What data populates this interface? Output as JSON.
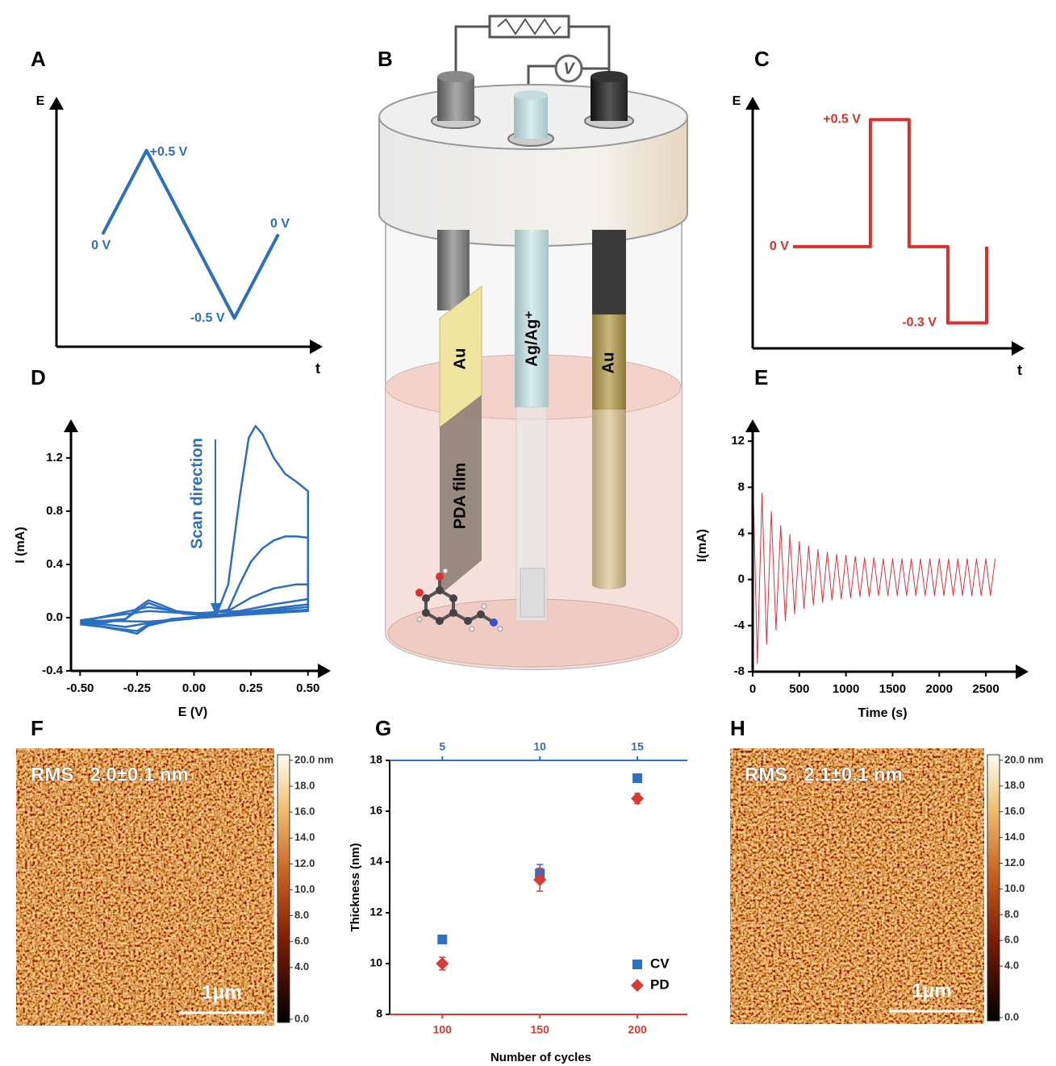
{
  "panel_labels": [
    "A",
    "B",
    "C",
    "D",
    "E",
    "F",
    "G",
    "H"
  ],
  "diagram": {
    "electrode_left": "Au",
    "reference": "Ag/Ag⁺",
    "electrode_right": "Au",
    "film": "PDA film",
    "meter": "V"
  },
  "chart_data": [
    {
      "type": "line",
      "xlabel": "t",
      "ylabel": "E",
      "color": "#2a6fc0",
      "x": [
        0,
        1,
        3,
        4
      ],
      "values": [
        0,
        0.5,
        -0.5,
        0
      ],
      "value_labels": [
        "0 V",
        "+0.5 V",
        "-0.5 V",
        "0 V"
      ],
      "xlim": [
        -1.05,
        5.01
      ],
      "ylim": [
        -0.67,
        0.82
      ]
    },
    {
      "type": "line",
      "xlabel": "t",
      "ylabel": "E",
      "color": "#d9302b",
      "x": [
        0,
        2,
        2,
        3,
        3,
        4,
        4,
        5,
        5
      ],
      "values": [
        0,
        0,
        0.5,
        0.5,
        0,
        0,
        -0.3,
        -0.3,
        0
      ],
      "value_labels": [
        "0 V",
        null,
        "+0.5 V",
        null,
        null,
        null,
        "-0.3 V",
        null,
        null
      ],
      "xlim": [
        -1.04,
        5.98
      ],
      "ylim": [
        -0.4,
        0.59
      ]
    },
    {
      "type": "line",
      "xlabel": "E (V)",
      "ylabel": "I (mA)",
      "annotation": "Scan direction",
      "xlim": [
        -0.54,
        0.6
      ],
      "ylim": [
        -0.4,
        1.49
      ],
      "xticks": [
        {
          "value": -0.5,
          "label": "-0.50"
        },
        {
          "value": -0.25,
          "label": "-0.25"
        },
        {
          "value": 0,
          "label": "0.00"
        },
        {
          "value": 0.25,
          "label": "0.25"
        },
        {
          "value": 0.5,
          "label": "0.50"
        }
      ],
      "yticks": [
        -0.4,
        {
          "value": 0,
          "label": "0.0"
        },
        0.4,
        0.8,
        1.2
      ],
      "series": [
        {
          "color": "#2a6fc0",
          "x": [
            -0.5,
            -0.4,
            -0.3,
            -0.25,
            -0.2,
            -0.15,
            -0.05,
            0.05,
            0.1,
            0.15,
            0.2,
            0.24,
            0.27,
            0.3,
            0.35,
            0.4,
            0.45,
            0.5,
            0.5,
            0.4,
            0.3,
            0.2,
            0.1,
            0,
            -0.1,
            -0.2,
            -0.25,
            -0.3,
            -0.4,
            -0.5
          ],
          "values": [
            -0.05,
            -0.04,
            -0.01,
            0.07,
            0.13,
            0.1,
            0.03,
            0.02,
            0.03,
            0.25,
            0.9,
            1.35,
            1.44,
            1.38,
            1.2,
            1.08,
            1.02,
            0.95,
            0.1,
            0.08,
            0.06,
            0.04,
            0.02,
            0,
            -0.02,
            -0.06,
            -0.12,
            -0.1,
            -0.07,
            -0.05
          ]
        },
        {
          "color": "#2a6fc0",
          "x": [
            -0.5,
            -0.3,
            -0.2,
            -0.1,
            0.05,
            0.15,
            0.2,
            0.25,
            0.3,
            0.35,
            0.4,
            0.45,
            0.5,
            0.5,
            0.3,
            0.1,
            -0.1,
            -0.2,
            -0.25,
            -0.35,
            -0.5
          ],
          "values": [
            -0.04,
            -0.01,
            0.11,
            0.05,
            0.03,
            0.06,
            0.25,
            0.42,
            0.52,
            0.58,
            0.61,
            0.61,
            0.6,
            0.08,
            0.05,
            0.02,
            -0.01,
            -0.05,
            -0.1,
            -0.08,
            -0.04
          ]
        },
        {
          "color": "#2a6fc0",
          "x": [
            -0.5,
            -0.2,
            0,
            0.15,
            0.25,
            0.35,
            0.45,
            0.5,
            0.5,
            0.2,
            -0.2,
            -0.3,
            -0.5
          ],
          "values": [
            -0.03,
            0.08,
            0.03,
            0.05,
            0.15,
            0.22,
            0.25,
            0.25,
            0.06,
            0.03,
            -0.04,
            -0.07,
            -0.03
          ]
        },
        {
          "color": "#2a6fc0",
          "x": [
            -0.5,
            -0.2,
            0,
            0.2,
            0.35,
            0.5,
            0.5,
            0.2,
            -0.2,
            -0.5
          ],
          "values": [
            -0.02,
            0.05,
            0.03,
            0.05,
            0.1,
            0.14,
            0.05,
            0.02,
            -0.03,
            -0.02
          ]
        }
      ]
    },
    {
      "type": "line",
      "xlabel": "Time (s)",
      "ylabel": "I(mA)",
      "color": "#e0303a",
      "xlim": [
        0,
        2958
      ],
      "ylim": [
        -8,
        13.9
      ],
      "xticks": [
        0,
        500,
        1000,
        1500,
        2000,
        2500
      ],
      "yticks": [
        -8,
        -4,
        0,
        4,
        8,
        12
      ],
      "x": [
        0,
        50,
        100,
        150,
        200,
        250,
        300,
        350,
        400,
        450,
        500,
        550,
        600,
        650,
        700,
        750,
        800,
        850,
        900,
        950,
        1000,
        1050,
        1100,
        1150,
        1200,
        1250,
        1300,
        1350,
        1400,
        1450,
        1500,
        1550,
        1600,
        1650,
        1700,
        1750,
        1800,
        1850,
        1900,
        1950,
        2000,
        2050,
        2100,
        2150,
        2200,
        2250,
        2300,
        2350,
        2400,
        2450,
        2500,
        2550,
        2600
      ],
      "values": [
        9.8,
        -7.3,
        7.5,
        -5.6,
        5.9,
        -4.4,
        4.7,
        -3.6,
        3.9,
        -3.0,
        3.3,
        -2.5,
        2.9,
        -2.2,
        2.6,
        -2.0,
        2.4,
        -1.8,
        2.2,
        -1.7,
        2.1,
        -1.6,
        2.0,
        -1.5,
        1.9,
        -1.5,
        1.9,
        -1.4,
        1.8,
        -1.4,
        1.8,
        -1.4,
        1.8,
        -1.4,
        1.8,
        -1.4,
        1.8,
        -1.4,
        1.8,
        -1.4,
        1.8,
        -1.4,
        1.8,
        -1.4,
        1.8,
        -1.4,
        1.8,
        -1.4,
        1.8,
        -1.4,
        1.8,
        -1.4,
        1.8
      ]
    },
    {
      "type": "scatter",
      "xlabel": "Number of cycles",
      "ylabel": "Thickness (nm)",
      "legend": "lower right",
      "xlim": [
        73,
        225.6
      ],
      "xticks": [
        100,
        150,
        200
      ],
      "x2lim": [
        2.3,
        17.56
      ],
      "x2ticks": [
        5,
        10,
        15
      ],
      "ylim": [
        8,
        18
      ],
      "yticks": [
        8,
        10,
        12,
        14,
        16,
        18
      ],
      "series": [
        {
          "name": "CV",
          "color": "#2f6fc4",
          "marker": "square",
          "axis": "x2",
          "x": [
            5,
            10,
            15
          ],
          "values": [
            10.95,
            13.55,
            17.3
          ],
          "errors": [
            0.1,
            0.35,
            0.1
          ]
        },
        {
          "name": "PD",
          "color": "#d93a32",
          "marker": "diamond",
          "x": [
            100,
            150,
            200
          ],
          "values": [
            10.0,
            13.3,
            16.5
          ],
          "errors": [
            0.25,
            0.45,
            0.2
          ]
        }
      ]
    },
    {
      "type": "image",
      "annotation": "RMS   2.0±0.1 nm",
      "scale_bar": "1μm",
      "clim": [
        -0.25,
        20.43
      ],
      "colorbar_ticks": [
        {
          "value": 20,
          "label": "20.0 nm"
        },
        {
          "value": 18,
          "label": "18.0"
        },
        {
          "value": 16,
          "label": "16.0"
        },
        {
          "value": 14,
          "label": "14.0"
        },
        {
          "value": 12,
          "label": "12.0"
        },
        {
          "value": 10,
          "label": "10.0"
        },
        {
          "value": 8,
          "label": "8.0"
        },
        {
          "value": 6,
          "label": "6.0"
        },
        {
          "value": 4,
          "label": "4.0"
        },
        {
          "value": 0,
          "label": "0.0"
        }
      ]
    },
    {
      "type": "image",
      "annotation": "RMS   2.1±0.1 nm",
      "scale_bar": "1μm",
      "clim": [
        -0.25,
        20.43
      ],
      "colorbar_ticks": [
        {
          "value": 20,
          "label": "20.0 nm"
        },
        {
          "value": 18,
          "label": "18.0"
        },
        {
          "value": 16,
          "label": "16.0"
        },
        {
          "value": 14,
          "label": "14.0"
        },
        {
          "value": 12,
          "label": "12.0"
        },
        {
          "value": 10,
          "label": "10.0"
        },
        {
          "value": 8,
          "label": "8.0"
        },
        {
          "value": 6,
          "label": "6.0"
        },
        {
          "value": 4,
          "label": "4.0"
        },
        {
          "value": 0,
          "label": "0.0"
        }
      ]
    }
  ]
}
